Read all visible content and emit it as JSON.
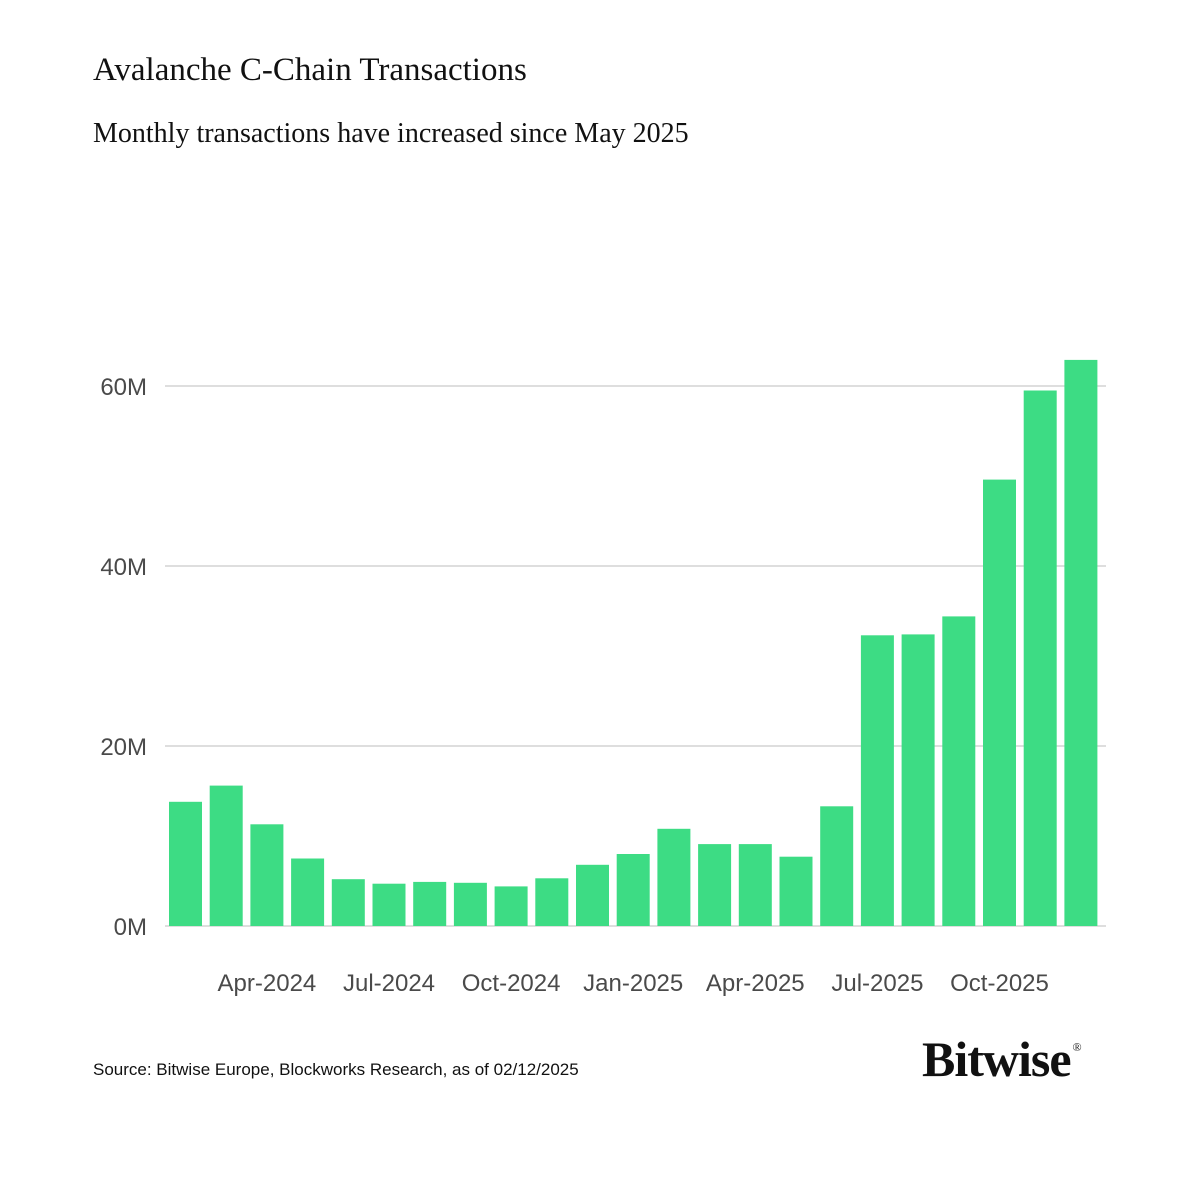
{
  "colors": {
    "bar": "#3ddc84",
    "grid": "#d4d4d4",
    "axis_text": "#4a4a4a",
    "text": "#111111"
  },
  "source": "Source: Bitwise Europe, Blockworks Research, as of 02/12/2025",
  "logo": {
    "text": "Bitwise",
    "mark": "®"
  },
  "chart_data": {
    "type": "bar",
    "title": "Avalanche C-Chain Transactions",
    "subtitle": "Monthly transactions have increased since May 2025",
    "xlabel": "",
    "ylabel": "",
    "ylim": [
      0,
      60
    ],
    "yticks": [
      {
        "value": 0,
        "label": "0M"
      },
      {
        "value": 20,
        "label": "20M"
      },
      {
        "value": 40,
        "label": "40M"
      },
      {
        "value": 60,
        "label": "60M"
      }
    ],
    "categories": [
      "Feb-2024",
      "Mar-2024",
      "Apr-2024",
      "May-2024",
      "Jun-2024",
      "Jul-2024",
      "Aug-2024",
      "Sep-2024",
      "Oct-2024",
      "Nov-2024",
      "Dec-2024",
      "Jan-2025",
      "Feb-2025",
      "Mar-2025",
      "Apr-2025",
      "May-2025",
      "Jun-2025",
      "Jul-2025",
      "Aug-2025",
      "Sep-2025",
      "Oct-2025",
      "Nov-2025",
      "Dec-2025"
    ],
    "values": [
      13.8,
      15.6,
      11.3,
      7.5,
      5.2,
      4.7,
      4.9,
      4.8,
      4.4,
      5.3,
      6.8,
      8.0,
      10.8,
      9.1,
      9.1,
      7.7,
      13.3,
      32.3,
      32.4,
      34.4,
      49.6,
      59.5,
      62.9
    ],
    "xtick_labels": [
      {
        "category": "Apr-2024",
        "label": "Apr-2024"
      },
      {
        "category": "Jul-2024",
        "label": "Jul-2024"
      },
      {
        "category": "Oct-2024",
        "label": "Oct-2024"
      },
      {
        "category": "Jan-2025",
        "label": "Jan-2025"
      },
      {
        "category": "Apr-2025",
        "label": "Apr-2025"
      },
      {
        "category": "Jul-2025",
        "label": "Jul-2025"
      },
      {
        "category": "Oct-2025",
        "label": "Oct-2025"
      }
    ],
    "grid": true,
    "legend": "none"
  }
}
